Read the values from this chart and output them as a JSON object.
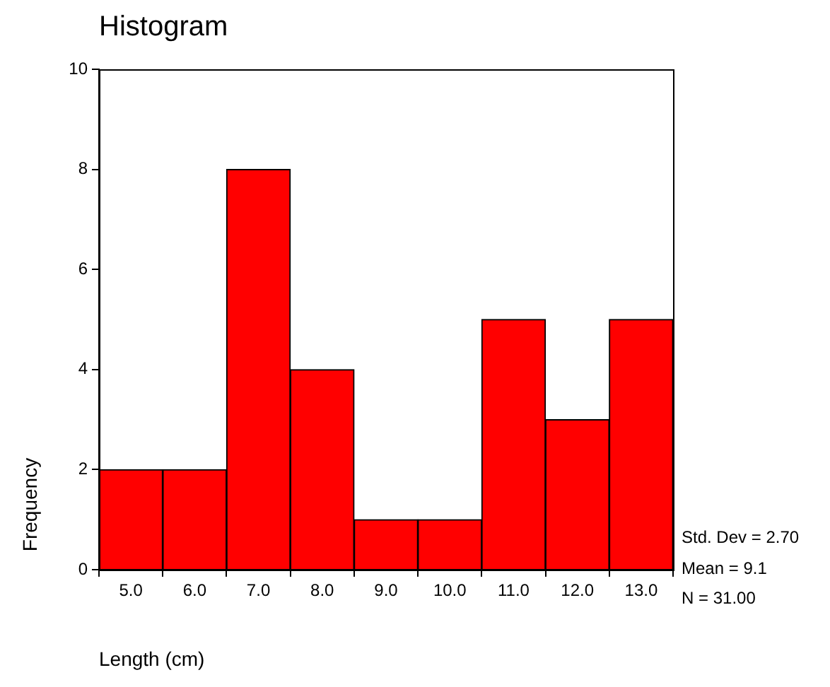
{
  "chart_data": {
    "type": "histogram",
    "title": "Histogram",
    "xlabel": "Length (cm)",
    "ylabel": "Frequency",
    "bins": [
      4.5,
      5.5,
      6.5,
      7.5,
      8.5,
      9.5,
      10.5,
      11.5,
      12.5,
      13.5
    ],
    "values": [
      2,
      2,
      8,
      4,
      1,
      1,
      5,
      3,
      5
    ],
    "color": "#ff0000",
    "xlim": [
      4.5,
      13.5
    ],
    "xticks": [
      {
        "value": 5,
        "label": "5.0"
      },
      {
        "value": 6,
        "label": "6.0"
      },
      {
        "value": 7,
        "label": "7.0"
      },
      {
        "value": 8,
        "label": "8.0"
      },
      {
        "value": 9,
        "label": "9.0"
      },
      {
        "value": 10,
        "label": "10.0"
      },
      {
        "value": 11,
        "label": "11.0"
      },
      {
        "value": 12,
        "label": "12.0"
      },
      {
        "value": 13,
        "label": "13.0"
      }
    ],
    "ylim": [
      0,
      10
    ],
    "yticks": [
      0,
      2,
      4,
      6,
      8,
      10
    ],
    "grid": false,
    "legend": false,
    "annotations": [
      "Std. Dev = 2.70",
      "Mean = 9.1",
      "N = 31.00"
    ]
  }
}
